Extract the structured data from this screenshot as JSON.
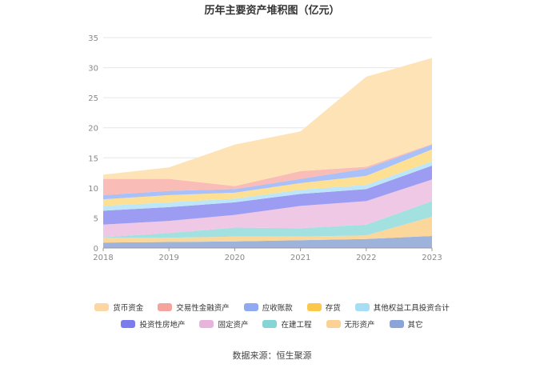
{
  "chart_data": {
    "type": "area",
    "stacked": true,
    "title": "历年主要资产堆积图（亿元）",
    "categories": [
      "2018",
      "2019",
      "2020",
      "2021",
      "2022",
      "2023"
    ],
    "ylim": [
      0,
      35
    ],
    "yticks": [
      0,
      5,
      10,
      15,
      20,
      25,
      30,
      35
    ],
    "grid": true,
    "legend_position": "bottom",
    "series": [
      {
        "name": "其它",
        "color": "#9db3dc",
        "values": [
          0.9,
          1.0,
          1.1,
          1.3,
          1.5,
          2.0
        ]
      },
      {
        "name": "无形资产",
        "color": "#fcd79b",
        "values": [
          0.8,
          0.7,
          0.8,
          0.6,
          0.6,
          3.2
        ]
      },
      {
        "name": "在建工程",
        "color": "#a3e1e1",
        "values": [
          0.1,
          0.8,
          1.5,
          1.4,
          1.8,
          2.6
        ]
      },
      {
        "name": "固定资产",
        "color": "#efc8e5",
        "values": [
          2.1,
          2.0,
          2.1,
          3.7,
          3.9,
          3.6
        ]
      },
      {
        "name": "投资性房地产",
        "color": "#9c9cf3",
        "values": [
          2.3,
          2.3,
          2.1,
          2.0,
          2.0,
          2.3
        ]
      },
      {
        "name": "其他权益工具投资合计",
        "color": "#bde6f9",
        "values": [
          0.8,
          0.8,
          0.6,
          0.7,
          0.7,
          0.7
        ]
      },
      {
        "name": "存货",
        "color": "#fde094",
        "values": [
          1.1,
          1.2,
          1.0,
          1.1,
          1.5,
          2.0
        ]
      },
      {
        "name": "应收账款",
        "color": "#a9c1f8",
        "values": [
          0.7,
          0.7,
          0.6,
          0.7,
          1.2,
          0.8
        ]
      },
      {
        "name": "交易性金融资产",
        "color": "#f9bcb6",
        "values": [
          2.7,
          2.0,
          0.5,
          1.3,
          0.3,
          0.1
        ]
      },
      {
        "name": "货币资金",
        "color": "#fee3b6",
        "values": [
          0.7,
          1.9,
          6.9,
          6.6,
          15.0,
          14.3
        ]
      }
    ]
  },
  "legend": {
    "row1": [
      {
        "label": "货币资金",
        "color": "#fdd7a3"
      },
      {
        "label": "交易性金融资产",
        "color": "#f4a49d"
      },
      {
        "label": "应收账款",
        "color": "#8fa9f2"
      },
      {
        "label": "存货",
        "color": "#fbc84c"
      },
      {
        "label": "其他权益工具投资合计",
        "color": "#a8def5"
      }
    ],
    "row2": [
      {
        "label": "投资性房地产",
        "color": "#7b7ded"
      },
      {
        "label": "固定资产",
        "color": "#e7b5dc"
      },
      {
        "label": "在建工程",
        "color": "#86d5d6"
      },
      {
        "label": "无形资产",
        "color": "#fbd195"
      },
      {
        "label": "其它",
        "color": "#8ba5d9"
      }
    ]
  },
  "source": "数据来源：恒生聚源"
}
